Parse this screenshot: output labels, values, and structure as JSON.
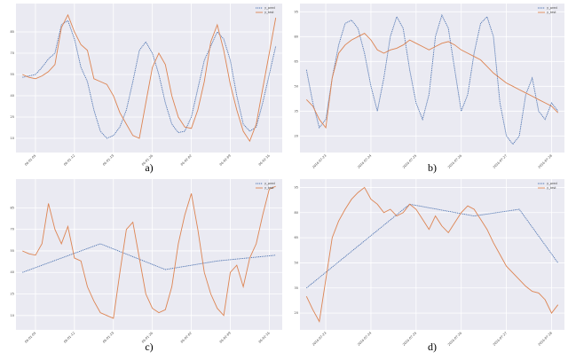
{
  "chart_data": [
    {
      "type": "line",
      "caption": "a)",
      "legend": "upper right",
      "grid": true,
      "x": [
        0,
        1,
        2,
        3,
        4,
        5,
        6,
        7,
        8,
        9,
        10,
        11,
        12,
        13,
        14,
        15,
        16,
        17,
        18,
        19,
        20,
        21,
        22,
        23,
        24,
        25,
        26,
        27,
        28,
        29,
        30,
        31,
        32,
        33,
        34,
        35,
        36,
        37,
        38,
        39
      ],
      "xlim": [
        -1,
        40
      ],
      "xticks": [
        {
          "value": 2,
          "label": "06-01-05"
        },
        {
          "value": 8,
          "label": "06-01-12"
        },
        {
          "value": 14,
          "label": "06-01-19"
        },
        {
          "value": 20,
          "label": "06-01-26"
        },
        {
          "value": 26,
          "label": "06-02-02"
        },
        {
          "value": 32,
          "label": "06-02-09"
        },
        {
          "value": 38,
          "label": "06-02-16"
        }
      ],
      "ylim": [
        0,
        105
      ],
      "yticks": [
        10,
        25,
        40,
        55,
        70,
        85
      ],
      "series": [
        {
          "name": "y_pred",
          "color": "#4c72b0",
          "style": "dotted",
          "values": [
            53,
            54,
            55,
            60,
            66,
            70,
            90,
            93,
            80,
            60,
            50,
            30,
            15,
            10,
            12,
            18,
            30,
            50,
            72,
            78,
            70,
            55,
            35,
            20,
            14,
            15,
            25,
            45,
            65,
            75,
            85,
            80,
            65,
            40,
            20,
            15,
            18,
            35,
            55,
            75
          ]
        },
        {
          "name": "y_test",
          "color": "#dd8452",
          "style": "solid",
          "values": [
            55,
            53,
            52,
            54,
            57,
            62,
            88,
            97,
            85,
            76,
            72,
            52,
            50,
            48,
            40,
            28,
            20,
            12,
            10,
            35,
            60,
            70,
            62,
            40,
            25,
            18,
            17,
            30,
            50,
            78,
            90,
            72,
            48,
            30,
            15,
            8,
            20,
            45,
            70,
            95
          ]
        }
      ]
    },
    {
      "type": "line",
      "caption": "b)",
      "legend": "upper right",
      "grid": true,
      "x": [
        0,
        1,
        2,
        3,
        4,
        5,
        6,
        7,
        8,
        9,
        10,
        11,
        12,
        13,
        14,
        15,
        16,
        17,
        18,
        19,
        20,
        21,
        22,
        23,
        24,
        25,
        26,
        27,
        28,
        29,
        30,
        31,
        32,
        33,
        34,
        35,
        36,
        37,
        38,
        39
      ],
      "xlim": [
        -1,
        40
      ],
      "xticks": [
        {
          "value": 3,
          "label": "2016-07-23"
        },
        {
          "value": 10,
          "label": "2016-07-24"
        },
        {
          "value": 17,
          "label": "2016-07-25"
        },
        {
          "value": 24,
          "label": "2016-07-26"
        },
        {
          "value": 31,
          "label": "2016-07-27"
        },
        {
          "value": 38,
          "label": "2016-07-28"
        }
      ],
      "ylim": [
        10,
        100
      ],
      "yticks": [
        20,
        35,
        50,
        65,
        80,
        95
      ],
      "series": [
        {
          "name": "y_pred",
          "color": "#4c72b0",
          "style": "dotted",
          "values": [
            60,
            40,
            25,
            30,
            55,
            75,
            88,
            90,
            85,
            70,
            50,
            35,
            55,
            80,
            92,
            85,
            60,
            40,
            30,
            45,
            80,
            93,
            85,
            60,
            35,
            45,
            70,
            88,
            92,
            80,
            40,
            20,
            15,
            20,
            45,
            55,
            35,
            30,
            40,
            35
          ]
        },
        {
          "name": "y_test",
          "color": "#dd8452",
          "style": "solid",
          "values": [
            42,
            38,
            30,
            25,
            55,
            70,
            75,
            78,
            80,
            82,
            78,
            72,
            70,
            72,
            73,
            75,
            78,
            76,
            74,
            72,
            74,
            76,
            77,
            75,
            72,
            70,
            68,
            66,
            62,
            58,
            55,
            52,
            50,
            48,
            46,
            44,
            42,
            40,
            38,
            34
          ]
        }
      ]
    },
    {
      "type": "line",
      "caption": "c)",
      "legend": "upper right",
      "grid": true,
      "x": [
        0,
        1,
        2,
        3,
        4,
        5,
        6,
        7,
        8,
        9,
        10,
        11,
        12,
        13,
        14,
        15,
        16,
        17,
        18,
        19,
        20,
        21,
        22,
        23,
        24,
        25,
        26,
        27,
        28,
        29,
        30,
        31,
        32,
        33,
        34,
        35,
        36,
        37,
        38,
        39
      ],
      "xlim": [
        -1,
        40
      ],
      "xticks": [
        {
          "value": 2,
          "label": "06-01-05"
        },
        {
          "value": 8,
          "label": "06-01-12"
        },
        {
          "value": 14,
          "label": "06-01-19"
        },
        {
          "value": 20,
          "label": "06-01-26"
        },
        {
          "value": 26,
          "label": "06-02-02"
        },
        {
          "value": 32,
          "label": "06-02-09"
        },
        {
          "value": 38,
          "label": "06-02-16"
        }
      ],
      "ylim": [
        0,
        105
      ],
      "yticks": [
        10,
        25,
        40,
        55,
        70,
        85
      ],
      "series": [
        {
          "name": "y_pred",
          "color": "#4c72b0",
          "style": "dotted",
          "x": [
            0,
            12,
            22,
            30,
            39
          ],
          "values": [
            40,
            60,
            42,
            48,
            52
          ]
        },
        {
          "name": "y_test",
          "color": "#dd8452",
          "style": "solid",
          "values": [
            55,
            53,
            52,
            60,
            88,
            70,
            60,
            72,
            50,
            48,
            30,
            20,
            12,
            10,
            8,
            40,
            70,
            75,
            50,
            25,
            15,
            12,
            14,
            30,
            60,
            80,
            95,
            70,
            40,
            25,
            15,
            10,
            40,
            45,
            30,
            50,
            60,
            80,
            98,
            100
          ]
        }
      ]
    },
    {
      "type": "line",
      "caption": "d)",
      "legend": "upper right",
      "grid": true,
      "x": [
        0,
        1,
        2,
        3,
        4,
        5,
        6,
        7,
        8,
        9,
        10,
        11,
        12,
        13,
        14,
        15,
        16,
        17,
        18,
        19,
        20,
        21,
        22,
        23,
        24,
        25,
        26,
        27,
        28,
        29,
        30,
        31,
        32,
        33,
        34,
        35,
        36,
        37,
        38,
        39
      ],
      "xlim": [
        -1,
        40
      ],
      "xticks": [
        {
          "value": 3,
          "label": "2016-07-23"
        },
        {
          "value": 10,
          "label": "2016-07-24"
        },
        {
          "value": 17,
          "label": "2016-07-25"
        },
        {
          "value": 24,
          "label": "2016-07-26"
        },
        {
          "value": 31,
          "label": "2016-07-27"
        },
        {
          "value": 38,
          "label": "2016-07-28"
        }
      ],
      "ylim": [
        10,
        100
      ],
      "yticks": [
        20,
        35,
        50,
        65,
        80,
        95
      ],
      "series": [
        {
          "name": "y_pred",
          "color": "#4c72b0",
          "style": "dotted",
          "x": [
            0,
            16,
            26,
            33,
            39
          ],
          "values": [
            35,
            85,
            78,
            82,
            50
          ]
        },
        {
          "name": "y_test",
          "color": "#dd8452",
          "style": "solid",
          "values": [
            30,
            22,
            15,
            40,
            65,
            75,
            82,
            88,
            92,
            95,
            88,
            85,
            80,
            82,
            78,
            80,
            85,
            82,
            76,
            70,
            78,
            72,
            68,
            74,
            80,
            84,
            82,
            76,
            70,
            62,
            55,
            48,
            44,
            40,
            36,
            33,
            32,
            28,
            20,
            25
          ]
        }
      ]
    }
  ]
}
